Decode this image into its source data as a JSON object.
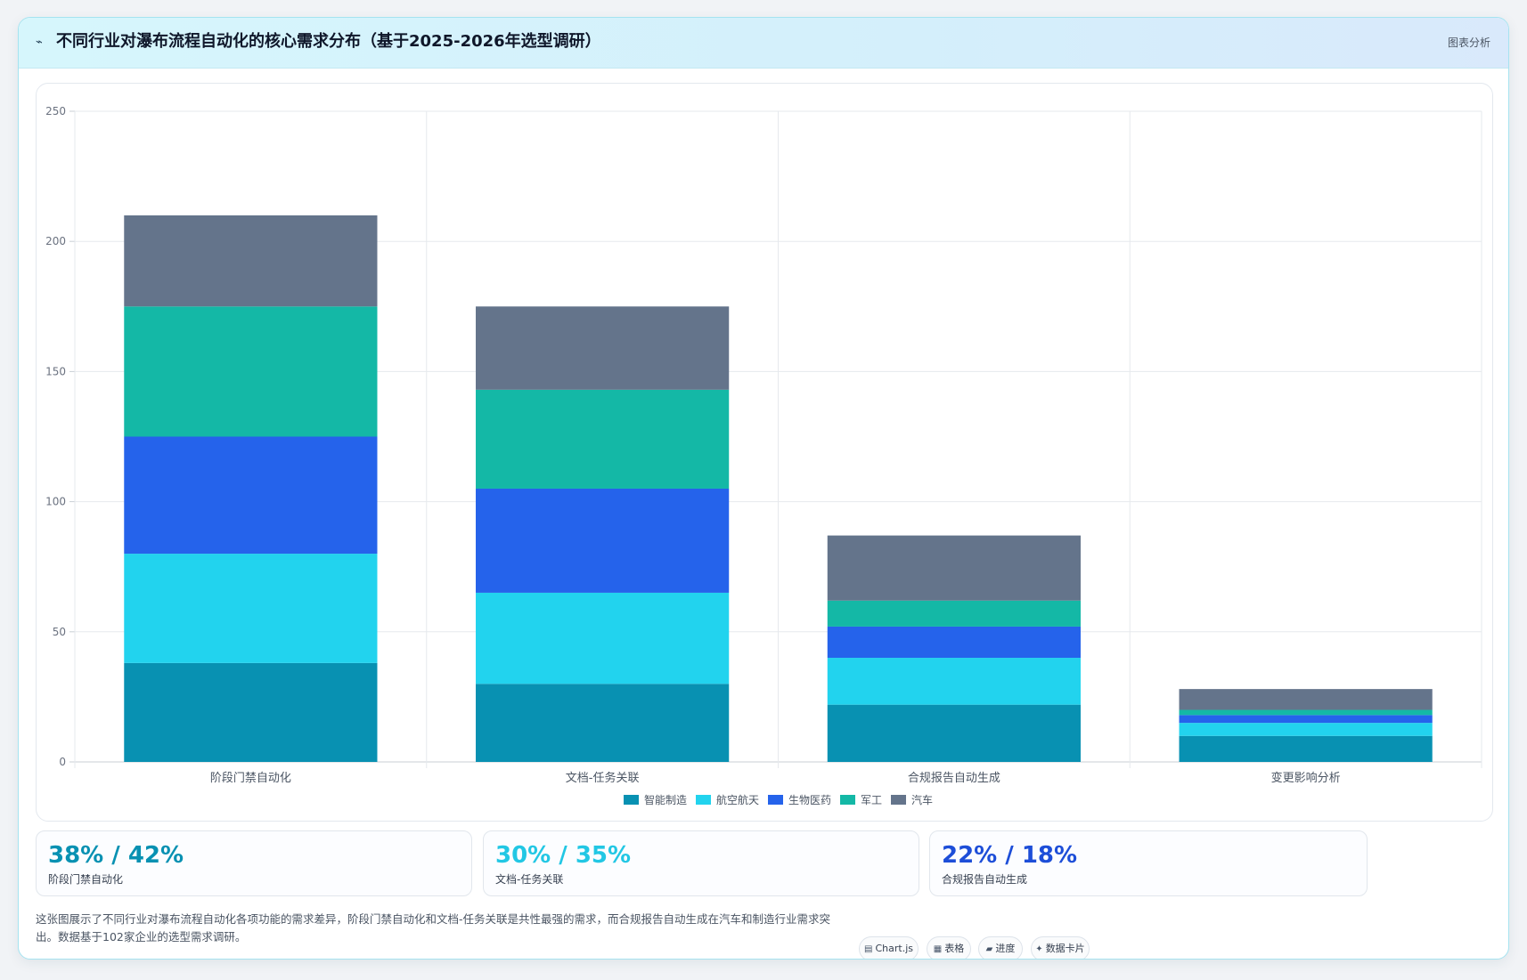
{
  "header": {
    "title": "不同行业对瀑布流程自动化的核心需求分布（基于2025-2026年选型调研）",
    "tag": "图表分析"
  },
  "chart_data": {
    "type": "bar",
    "stacked": true,
    "categories": [
      "阶段门禁自动化",
      "文档-任务关联",
      "合规报告自动生成",
      "变更影响分析"
    ],
    "series": [
      {
        "name": "智能制造",
        "color": "#0891b2",
        "values": [
          38,
          30,
          22,
          10
        ]
      },
      {
        "name": "航空航天",
        "color": "#22d3ee",
        "values": [
          42,
          35,
          18,
          5
        ]
      },
      {
        "name": "生物医药",
        "color": "#2563eb",
        "values": [
          45,
          40,
          12,
          3
        ]
      },
      {
        "name": "军工",
        "color": "#14b8a6",
        "values": [
          50,
          38,
          10,
          2
        ]
      },
      {
        "name": "汽车",
        "color": "#64748b",
        "values": [
          35,
          32,
          25,
          8
        ]
      }
    ],
    "ylim": [
      0,
      250
    ],
    "yticks": [
      0,
      50,
      100,
      150,
      200,
      250
    ],
    "grid": true,
    "legend": "bottom"
  },
  "stats": [
    {
      "value": "38% / 42%",
      "label": "阶段门禁自动化",
      "color": "#0891b2"
    },
    {
      "value": "30% / 35%",
      "label": "文档-任务关联",
      "color": "#22d3ee"
    },
    {
      "value": "22% / 18%",
      "label": "合规报告自动生成",
      "color": "#1d4ed8"
    }
  ],
  "footnote": "这张图展示了不同行业对瀑布流程自动化各项功能的需求差异，阶段门禁自动化和文档-任务关联是共性最强的需求，而合规报告自动生成在汽车和制造行业需求突出。数据基于102家企业的选型需求调研。",
  "chips": [
    {
      "icon": "chart-icon",
      "label": "Chart.js"
    },
    {
      "icon": "table-icon",
      "label": "表格"
    },
    {
      "icon": "progress-icon",
      "label": "进度"
    },
    {
      "icon": "sparkle-icon",
      "label": "数据卡片"
    }
  ]
}
